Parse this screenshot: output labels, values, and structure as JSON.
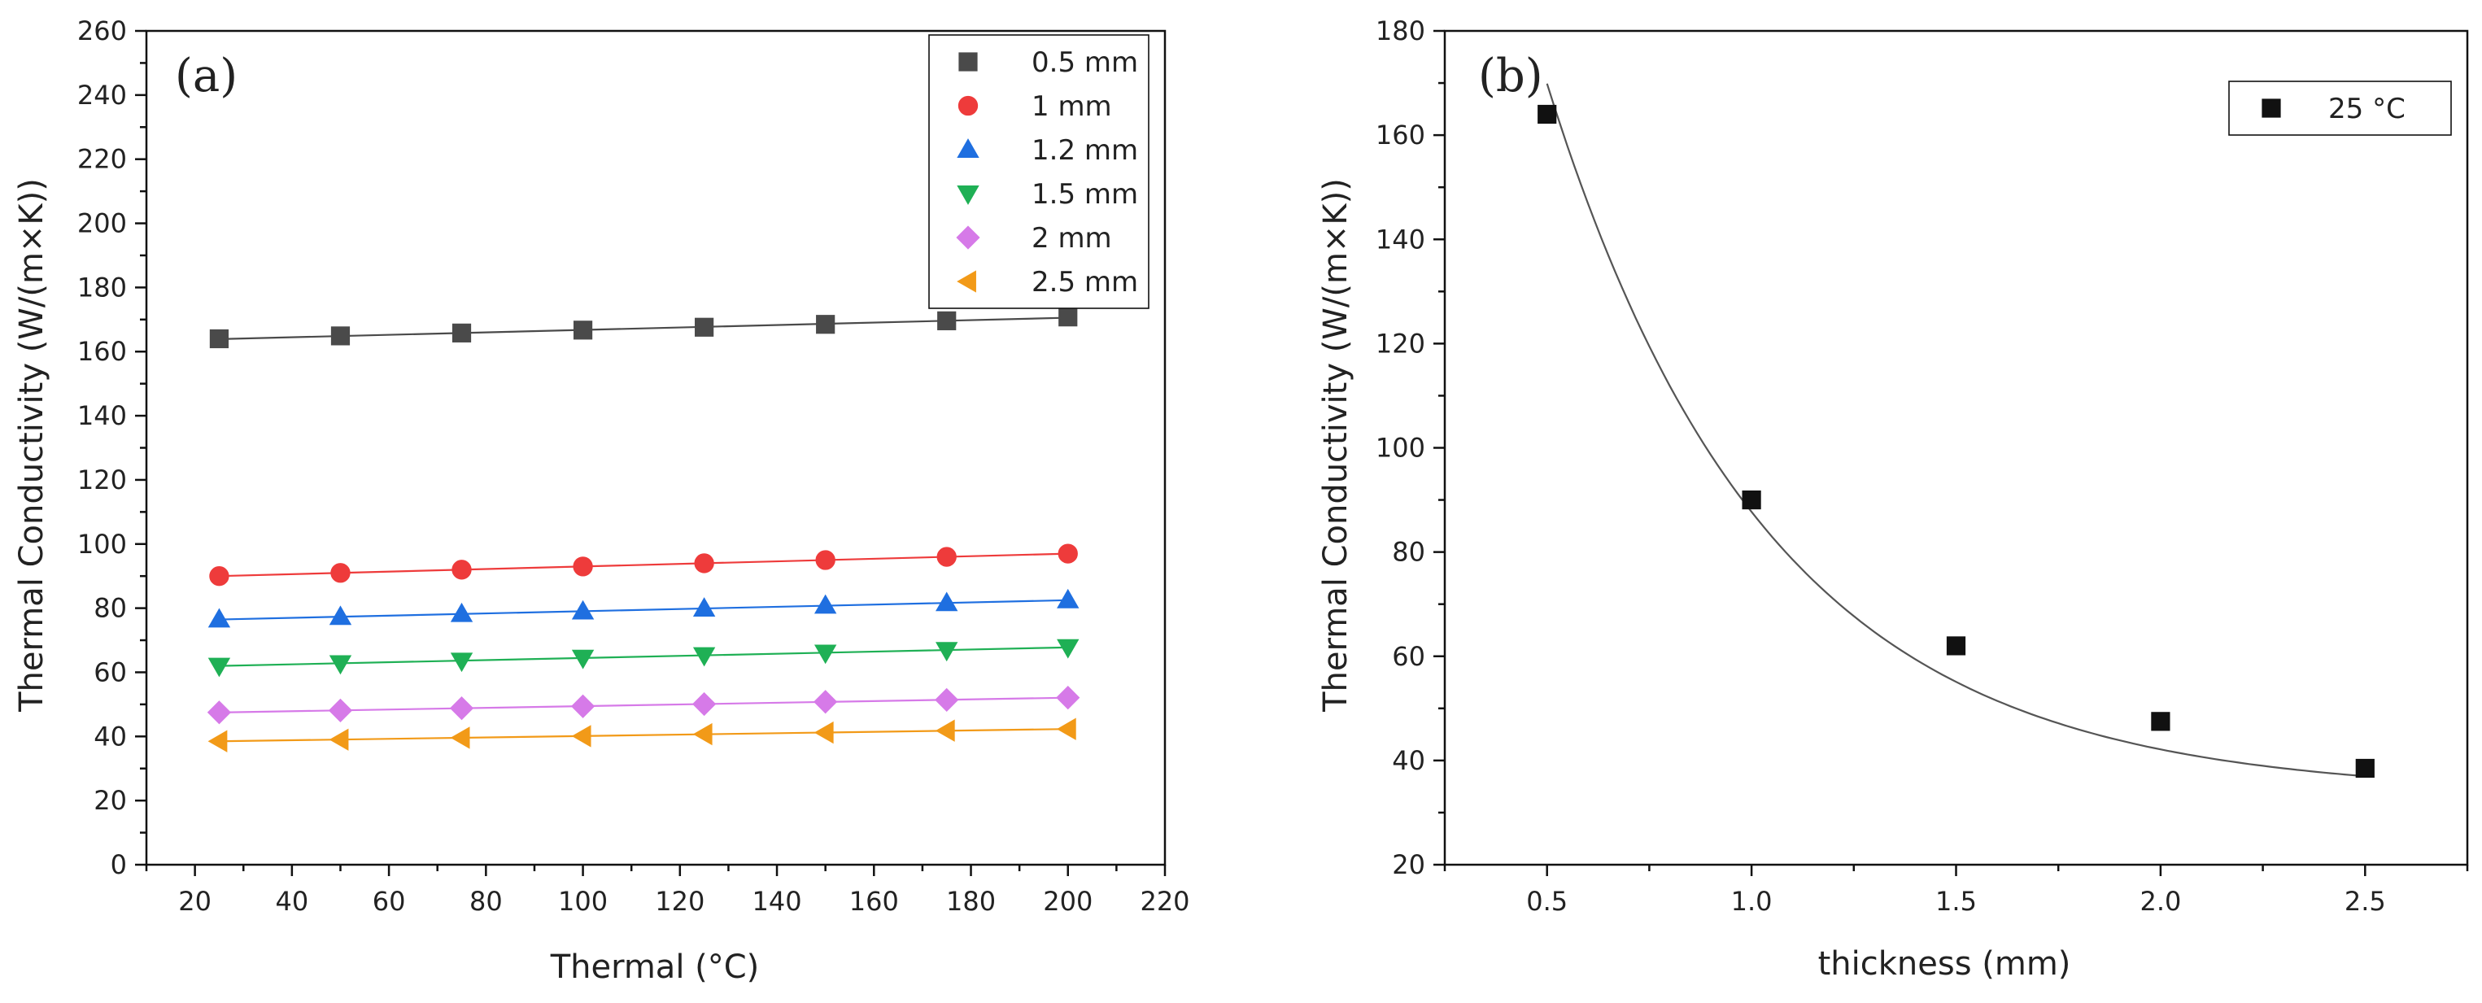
{
  "chart_data": [
    {
      "panel": "(a)",
      "type": "scatter",
      "xlabel": "Thermal (°C)",
      "ylabel": "Thermal Conductivity (W/(m×K))",
      "xlim": [
        10,
        220
      ],
      "ylim": [
        0,
        260
      ],
      "xticks": [
        20,
        40,
        60,
        80,
        100,
        120,
        140,
        160,
        180,
        200,
        220
      ],
      "yticks": [
        0,
        20,
        40,
        60,
        80,
        100,
        120,
        140,
        160,
        180,
        200,
        220,
        240,
        260
      ],
      "legend_position": "top-right",
      "x": [
        25,
        50,
        75,
        100,
        125,
        150,
        175,
        200
      ],
      "series": [
        {
          "name": "0.5 mm",
          "marker": "square",
          "color": "#4a4a4a",
          "values": [
            164,
            164.9,
            165.8,
            166.7,
            167.6,
            168.5,
            169.6,
            170.8
          ]
        },
        {
          "name": "1 mm",
          "marker": "circle",
          "color": "#ee3b3b",
          "values": [
            90,
            91,
            92,
            93,
            94,
            95,
            96,
            97
          ]
        },
        {
          "name": "1.2 mm",
          "marker": "triangle-up",
          "color": "#1f6fe0",
          "values": [
            76.5,
            77.3,
            78.2,
            79,
            79.9,
            80.8,
            81.6,
            82.5
          ]
        },
        {
          "name": "1.5 mm",
          "marker": "triangle-down",
          "color": "#1fb055",
          "values": [
            62,
            62.8,
            63.6,
            64.5,
            65.3,
            66.1,
            66.9,
            67.8
          ]
        },
        {
          "name": "2 mm",
          "marker": "diamond",
          "color": "#d67ae8",
          "values": [
            47.5,
            48.1,
            48.8,
            49.4,
            50.1,
            50.8,
            51.4,
            52.1
          ]
        },
        {
          "name": "2.5 mm",
          "marker": "triangle-left",
          "color": "#f29a18",
          "values": [
            38.5,
            39,
            39.6,
            40.1,
            40.7,
            41.2,
            41.8,
            42.3
          ]
        }
      ]
    },
    {
      "panel": "(b)",
      "type": "scatter",
      "xlabel": "thickness (mm)",
      "ylabel": "Thermal Conductivity (W/(m×K))",
      "xlim": [
        0.25,
        2.75
      ],
      "ylim": [
        20,
        180
      ],
      "xticks": [
        0.5,
        1.0,
        1.5,
        2.0,
        2.5
      ],
      "yticks": [
        20,
        40,
        60,
        80,
        100,
        120,
        140,
        160,
        180
      ],
      "legend_position": "top-right",
      "series": [
        {
          "name": "25 °C",
          "marker": "square",
          "color": "#111111",
          "x": [
            0.5,
            1.0,
            1.5,
            2.0,
            2.5
          ],
          "values": [
            164,
            90,
            62,
            47.5,
            38.5
          ]
        }
      ],
      "fit": {
        "type": "exponential decay curve",
        "color": "#555555"
      }
    }
  ]
}
